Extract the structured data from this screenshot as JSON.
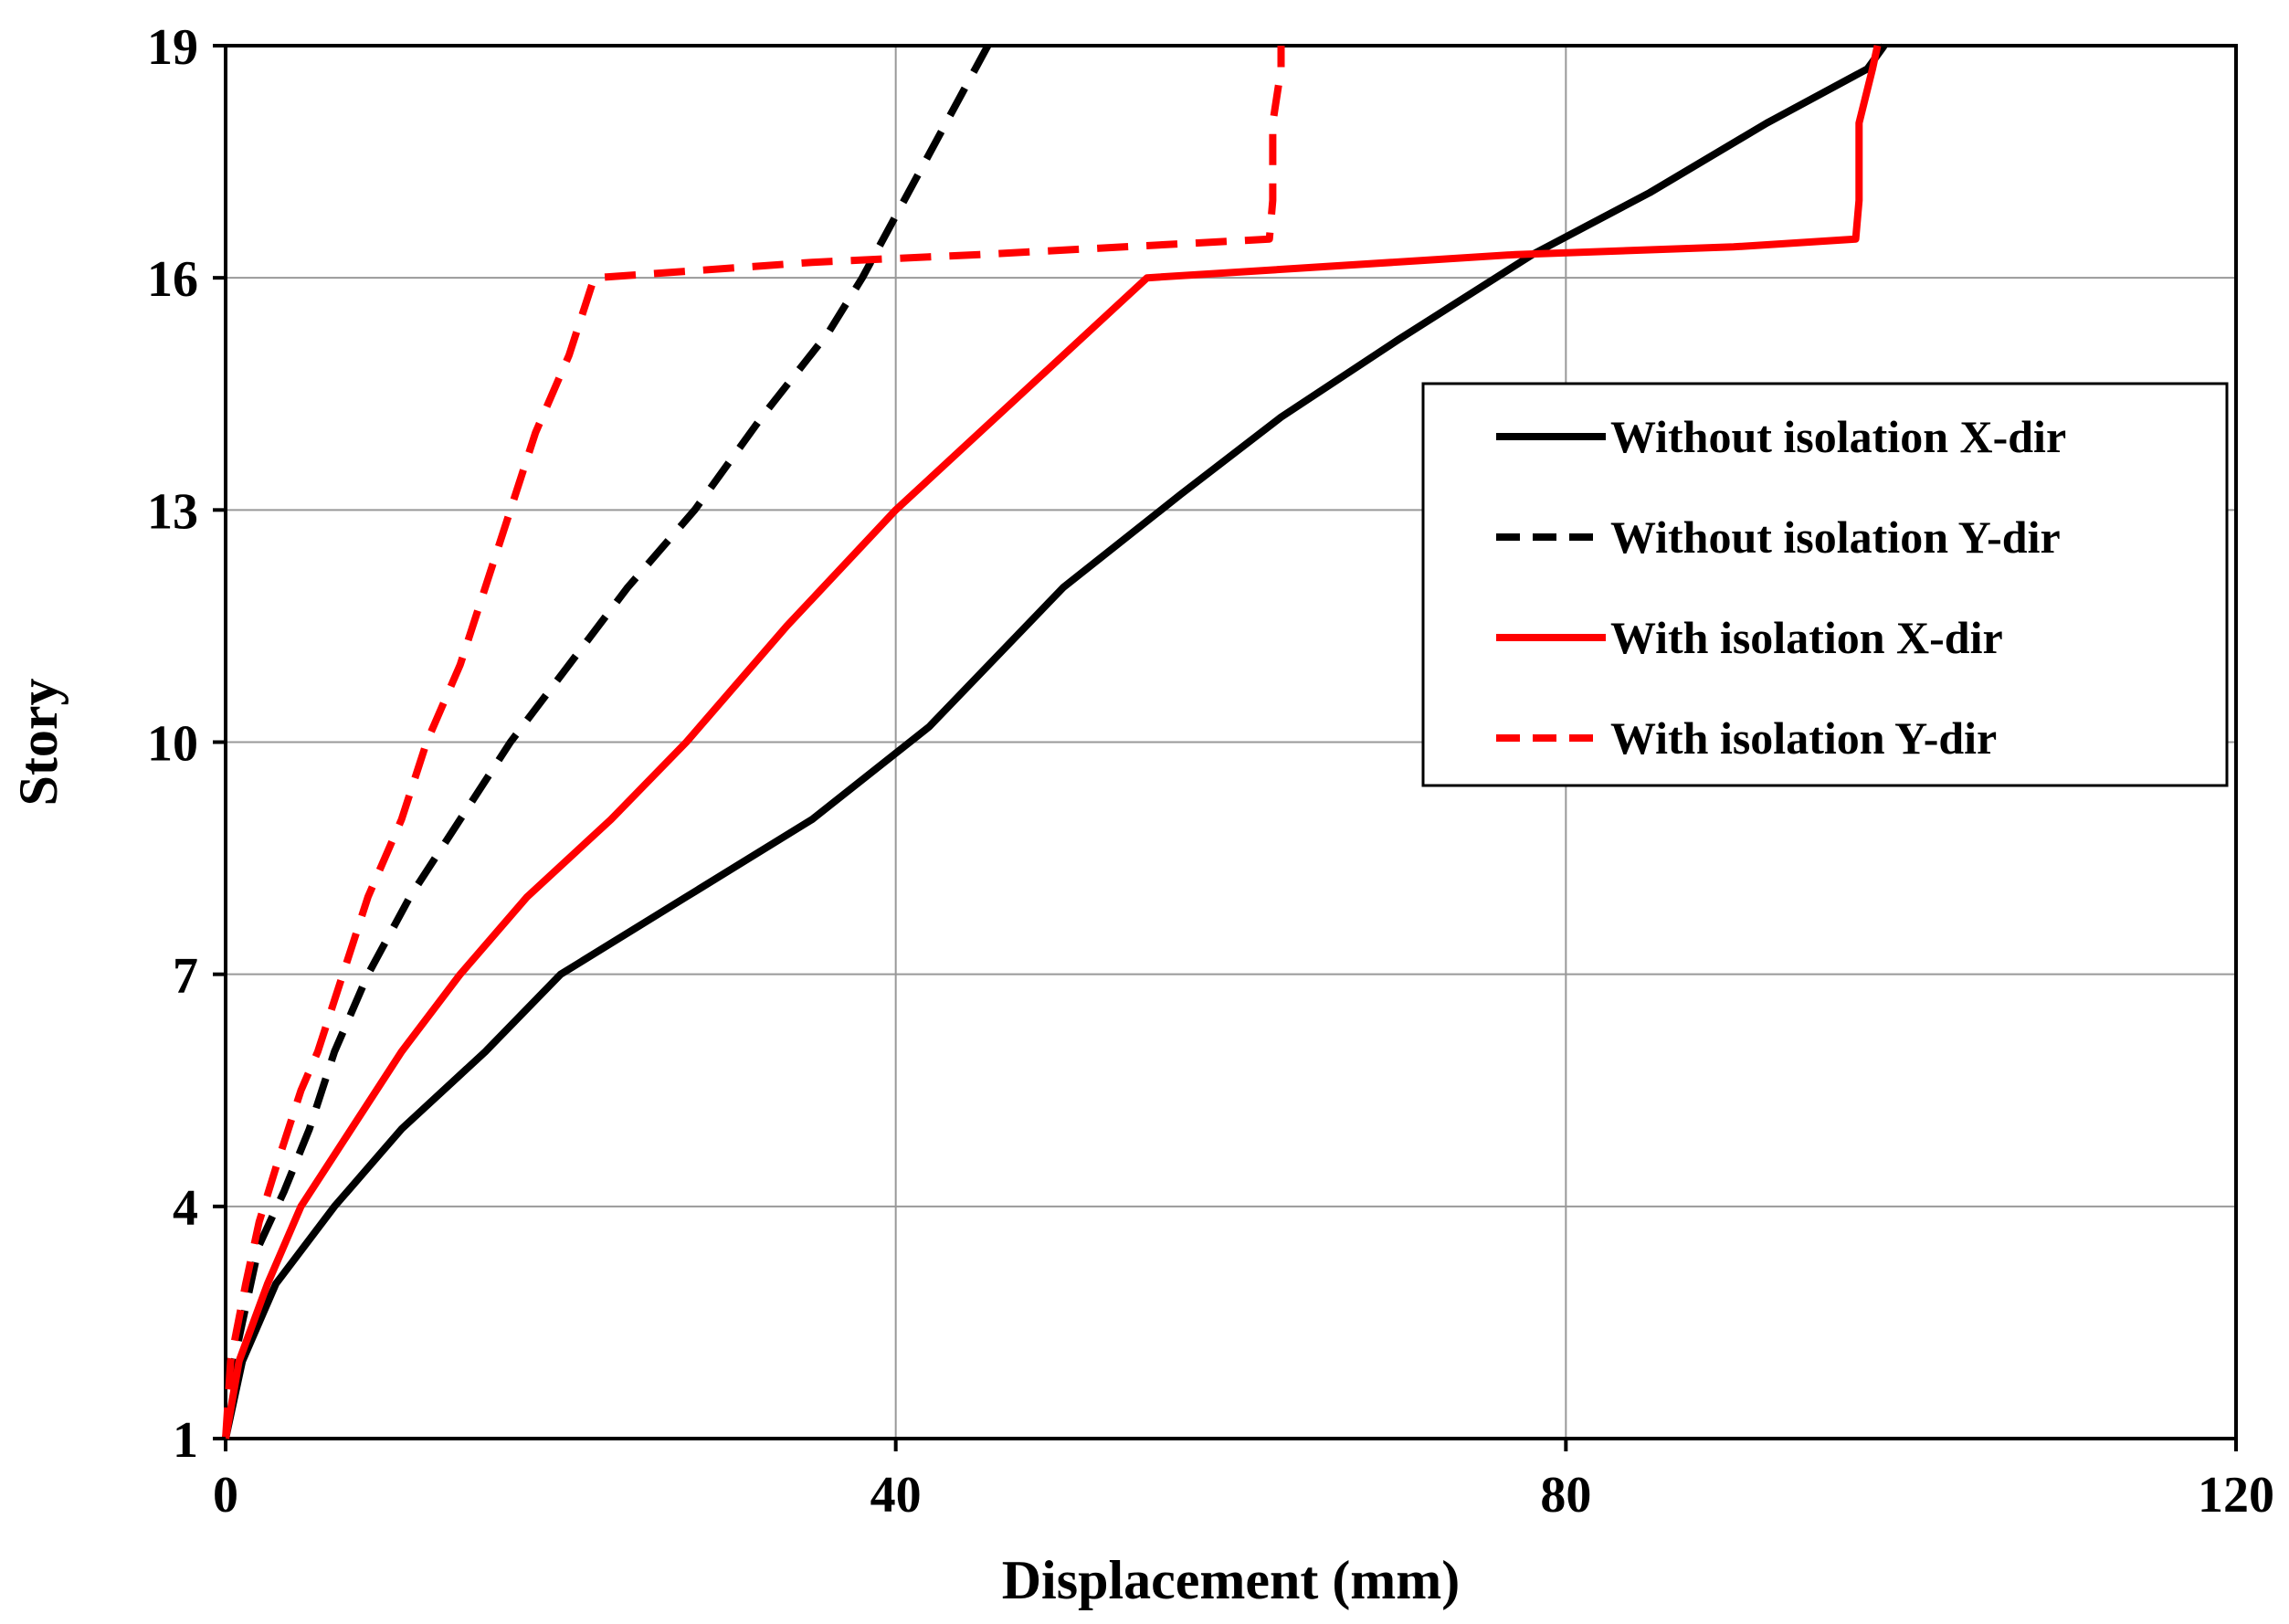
{
  "chart_data": {
    "type": "line",
    "title": "",
    "xlabel": "Displacement  (mm)",
    "ylabel": "Story",
    "xlim": [
      0,
      120
    ],
    "ylim": [
      1,
      19
    ],
    "xticks": [
      0,
      40,
      80,
      120
    ],
    "yticks": [
      1,
      4,
      7,
      10,
      13,
      16,
      19
    ],
    "grid": true,
    "legend_position": "right",
    "series": [
      {
        "name": "Without isolation X-dir",
        "color": "#000000",
        "style": "solid",
        "points": [
          [
            0,
            1
          ],
          [
            1,
            2
          ],
          [
            3,
            3
          ],
          [
            6.5,
            4
          ],
          [
            10.5,
            5
          ],
          [
            15.5,
            6
          ],
          [
            20,
            7
          ],
          [
            27.5,
            8
          ],
          [
            35,
            9
          ],
          [
            42,
            10.2
          ],
          [
            50,
            12
          ],
          [
            57,
            13.2
          ],
          [
            63,
            14.2
          ],
          [
            70,
            15.2
          ],
          [
            78,
            16.3
          ],
          [
            85,
            17.1
          ],
          [
            92,
            18
          ],
          [
            98,
            18.7
          ],
          [
            99,
            19
          ]
        ]
      },
      {
        "name": "Without isolation Y-dir",
        "color": "#000000",
        "style": "dashed",
        "points": [
          [
            0,
            1
          ],
          [
            0.5,
            2
          ],
          [
            1,
            2.5
          ],
          [
            2,
            3.5
          ],
          [
            3.5,
            4.2
          ],
          [
            5,
            5
          ],
          [
            6.5,
            6
          ],
          [
            8.5,
            7
          ],
          [
            11,
            8
          ],
          [
            14,
            9
          ],
          [
            17,
            10
          ],
          [
            20.5,
            11
          ],
          [
            24,
            12
          ],
          [
            28,
            13
          ],
          [
            32,
            14.2
          ],
          [
            36,
            15.3
          ],
          [
            38,
            16
          ],
          [
            41,
            17.2
          ],
          [
            44,
            18.4
          ],
          [
            45.5,
            19
          ]
        ]
      },
      {
        "name": "With isolation X-dir",
        "color": "#ff0000",
        "style": "solid",
        "points": [
          [
            0,
            1
          ],
          [
            0.8,
            2
          ],
          [
            2.5,
            3
          ],
          [
            4.5,
            4
          ],
          [
            7.5,
            5
          ],
          [
            10.5,
            6
          ],
          [
            14,
            7
          ],
          [
            18,
            8
          ],
          [
            23,
            9
          ],
          [
            27.5,
            10
          ],
          [
            33.5,
            11.5
          ],
          [
            40,
            13
          ],
          [
            45,
            14
          ],
          [
            55,
            16
          ],
          [
            77,
            16.3
          ],
          [
            90,
            16.4
          ],
          [
            97.3,
            16.5
          ],
          [
            97.5,
            17
          ],
          [
            97.5,
            18
          ],
          [
            98.3,
            18.7
          ],
          [
            98.6,
            19
          ]
        ]
      },
      {
        "name": "With isolation Y-dir",
        "color": "#ff0000",
        "style": "dashed",
        "points": [
          [
            0,
            1
          ],
          [
            0.3,
            2
          ],
          [
            1.2,
            3
          ],
          [
            2,
            3.8
          ],
          [
            3,
            4.5
          ],
          [
            4.5,
            5.5
          ],
          [
            5.5,
            6
          ],
          [
            7,
            7
          ],
          [
            8.5,
            8
          ],
          [
            10.5,
            9
          ],
          [
            12,
            10
          ],
          [
            14,
            11
          ],
          [
            15.5,
            12
          ],
          [
            17,
            13
          ],
          [
            18.5,
            14
          ],
          [
            20.5,
            15
          ],
          [
            22,
            16
          ],
          [
            35,
            16.2
          ],
          [
            45,
            16.3
          ],
          [
            62.3,
            16.5
          ],
          [
            62.5,
            17
          ],
          [
            62.5,
            18
          ],
          [
            63,
            18.7
          ],
          [
            63,
            19
          ]
        ]
      }
    ]
  }
}
